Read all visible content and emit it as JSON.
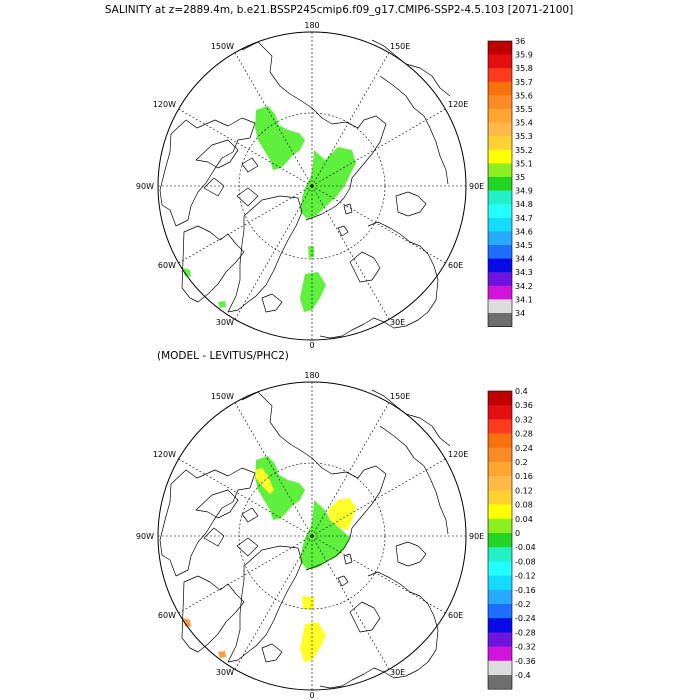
{
  "title": "SALINITY at z=2889.4m, b.e21.BSSP245cmip6.f09_g17.CMIP6-SSP2-4.5.103 [2071-2100]",
  "subtitle": "(MODEL - LEVITUS/PHC2)",
  "longitude_labels": [
    "180",
    "150E",
    "120E",
    "90E",
    "60E",
    "30E",
    "0",
    "30W",
    "60W",
    "90W",
    "120W",
    "150W"
  ],
  "top_colorbar": {
    "labels": [
      "36",
      "35.9",
      "35.8",
      "35.7",
      "35.6",
      "35.5",
      "35.4",
      "35.3",
      "35.2",
      "35.1",
      "35",
      "34.9",
      "34.8",
      "34.7",
      "34.6",
      "34.5",
      "34.4",
      "34.3",
      "34.2",
      "34.1",
      "34"
    ],
    "colors": [
      "#c00000",
      "#e41010",
      "#ff3b1e",
      "#f5730a",
      "#fa8c28",
      "#ffa532",
      "#ffb946",
      "#ffd232",
      "#ffff00",
      "#8cf020",
      "#22d522",
      "#22f0c8",
      "#22ffff",
      "#14dcff",
      "#28aaff",
      "#1e6eff",
      "#0a0ae6",
      "#6e14dc",
      "#d214dc",
      "#dcdcdc",
      "#6e6e6e"
    ]
  },
  "bottom_colorbar": {
    "labels": [
      "0.4",
      "0.36",
      "0.32",
      "0.28",
      "0.24",
      "0.2",
      "0.16",
      "0.12",
      "0.08",
      "0.04",
      "0",
      "-0.04",
      "-0.08",
      "-0.12",
      "-0.16",
      "-0.2",
      "-0.24",
      "-0.28",
      "-0.32",
      "-0.36",
      "-0.4"
    ],
    "colors": [
      "#c00000",
      "#e41010",
      "#ff3b1e",
      "#f5730a",
      "#fa8c28",
      "#ffa532",
      "#ffb946",
      "#ffd232",
      "#ffff00",
      "#8cf020",
      "#22d522",
      "#22f0c8",
      "#22ffff",
      "#14dcff",
      "#28aaff",
      "#1e6eff",
      "#0a0ae6",
      "#6e14dc",
      "#d214dc",
      "#dcdcdc",
      "#6e6e6e"
    ]
  },
  "colors": {
    "green": "#5ef03c",
    "yellow": "#ffff28",
    "orange": "#fa9a3c"
  }
}
